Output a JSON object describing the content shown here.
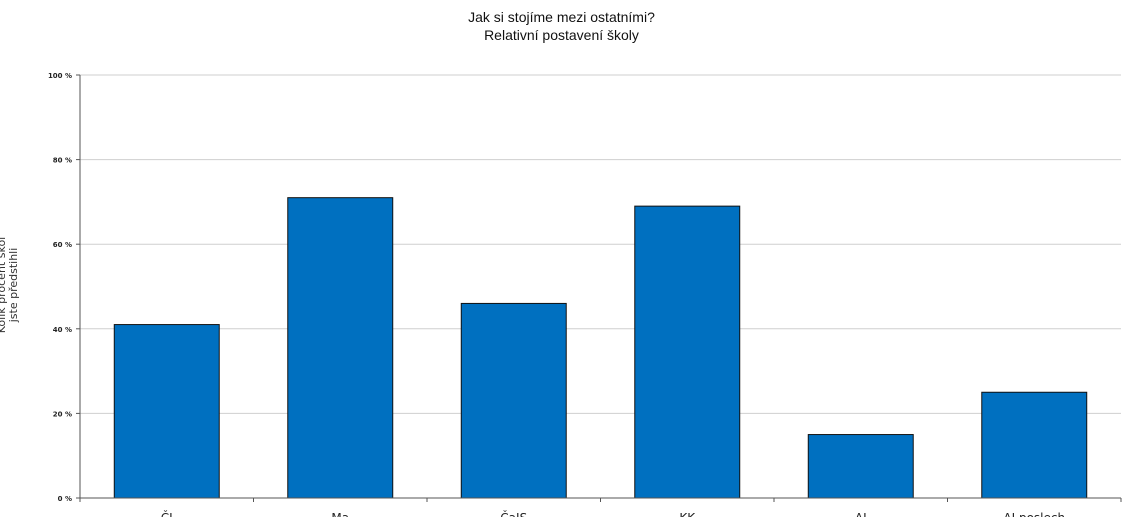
{
  "chart_data": {
    "type": "bar",
    "title_lines": [
      "Jak si stojíme mezi ostatními?",
      "Relativní postavení školy"
    ],
    "ylabel_lines": [
      "Kolik procent škol",
      "jste předstihli"
    ],
    "xlabel": "",
    "categories": [
      "ČJ",
      "Ma",
      "ČaJS",
      "KK",
      "AJ",
      "AJ poslech"
    ],
    "values": [
      41,
      71,
      46,
      69,
      15,
      25
    ],
    "ylim": [
      0,
      100
    ],
    "yticks": [
      0,
      20,
      40,
      60,
      80,
      100
    ],
    "ytick_labels": [
      "0 %",
      "20 %",
      "40 %",
      "60 %",
      "80 %",
      "100 %"
    ],
    "grid": true,
    "legend": "none",
    "colors": {
      "bar": "#0070C0",
      "bar_outline": "#111111",
      "grid": "#CFCFCF",
      "axis": "#555555",
      "text": "#222222"
    }
  }
}
